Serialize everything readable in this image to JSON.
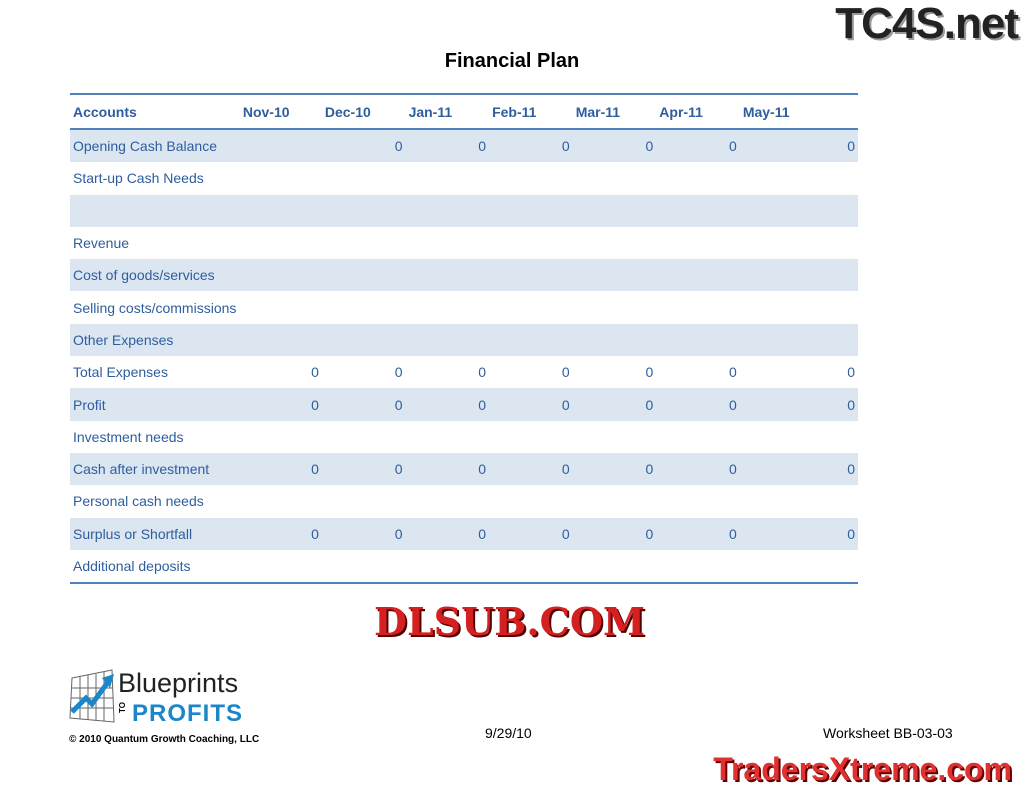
{
  "title": "Financial Plan",
  "table": {
    "headers": [
      "Accounts",
      "Nov-10",
      "Dec-10",
      "Jan-11",
      "Feb-11",
      "Mar-11",
      "Apr-11",
      "May-11",
      ""
    ],
    "rows": [
      [
        "Opening Cash Balance",
        "",
        "0",
        "0",
        "0",
        "0",
        "0",
        "0"
      ],
      [
        "Start-up Cash Needs",
        "",
        "",
        "",
        "",
        "",
        "",
        ""
      ],
      [
        "",
        "",
        "",
        "",
        "",
        "",
        "",
        ""
      ],
      [
        "Revenue",
        "",
        "",
        "",
        "",
        "",
        "",
        ""
      ],
      [
        "Cost of goods/services",
        "",
        "",
        "",
        "",
        "",
        "",
        ""
      ],
      [
        "Selling costs/commissions",
        "",
        "",
        "",
        "",
        "",
        "",
        ""
      ],
      [
        "Other Expenses",
        "",
        "",
        "",
        "",
        "",
        "",
        ""
      ],
      [
        "Total Expenses",
        "0",
        "0",
        "0",
        "0",
        "0",
        "0",
        "0"
      ],
      [
        "Profit",
        "0",
        "0",
        "0",
        "0",
        "0",
        "0",
        "0"
      ],
      [
        "Investment needs",
        "",
        "",
        "",
        "",
        "",
        "",
        ""
      ],
      [
        "Cash after investment",
        "0",
        "0",
        "0",
        "0",
        "0",
        "0",
        "0"
      ],
      [
        "Personal cash needs",
        "",
        "",
        "",
        "",
        "",
        "",
        ""
      ],
      [
        "Surplus or Shortfall",
        "0",
        "0",
        "0",
        "0",
        "0",
        "0",
        "0"
      ],
      [
        "Additional deposits",
        "",
        "",
        "",
        "",
        "",
        "",
        ""
      ]
    ]
  },
  "footer": {
    "logo_line1": "Blueprints",
    "logo_line2": "PROFITS",
    "logo_to": "TO",
    "copyright": "© 2010 Quantum Growth Coaching, LLC",
    "date": "9/29/10",
    "worksheet": "Worksheet BB-03-03"
  },
  "watermarks": {
    "top": "TC4S.net",
    "middle": "DLSUB.COM",
    "bottom": "TradersXtreme.com"
  }
}
